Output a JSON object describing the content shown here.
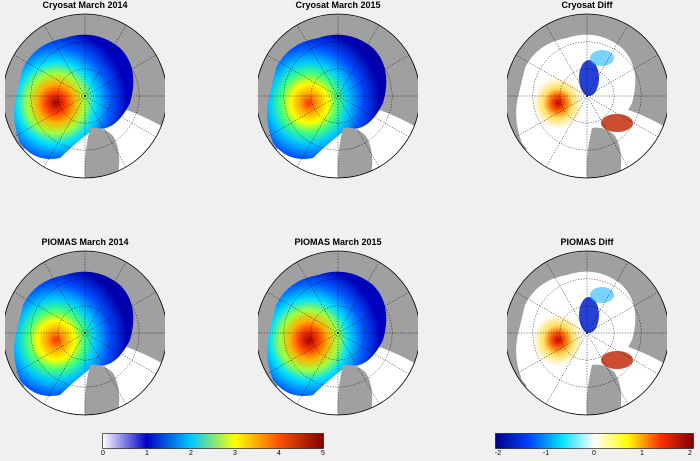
{
  "panels": [
    {
      "title": "Cryosat March 2014",
      "kind": "abs",
      "hotspot": "strong"
    },
    {
      "title": "Cryosat March 2015",
      "kind": "abs",
      "hotspot": "medium"
    },
    {
      "title": "Cryosat Diff",
      "kind": "diff",
      "hotspot": "speckle"
    },
    {
      "title": "PIOMAS March 2014",
      "kind": "abs",
      "hotspot": "smooth"
    },
    {
      "title": "PIOMAS March 2015",
      "kind": "abs",
      "hotspot": "smooth-strong"
    },
    {
      "title": "PIOMAS Diff",
      "kind": "diff",
      "hotspot": "smooth"
    }
  ],
  "colorbars": [
    {
      "ticks": [
        "0",
        "1",
        "2",
        "3",
        "4",
        "5"
      ],
      "colors": [
        "#ffffff",
        "#0000c8",
        "#00c8ff",
        "#ffff00",
        "#ff5000",
        "#800000"
      ]
    },
    {
      "ticks": [
        "-2",
        "-1",
        "0",
        "1",
        "2"
      ],
      "colors": [
        "#00008c",
        "#0040ff",
        "#00e0ff",
        "#ffffff",
        "#ffff00",
        "#ff3000",
        "#800000"
      ]
    }
  ],
  "chart_data": {
    "type": "heatmap",
    "panels": [
      "Cryosat March 2014",
      "Cryosat March 2015",
      "Cryosat Diff",
      "PIOMAS March 2014",
      "PIOMAS March 2015",
      "PIOMAS Diff"
    ],
    "colorbar_ranges": [
      [
        0,
        5
      ],
      [
        -2,
        2
      ]
    ],
    "colors": {
      "land": "#a0a0a0",
      "ocean_background": "#ffffff"
    }
  }
}
